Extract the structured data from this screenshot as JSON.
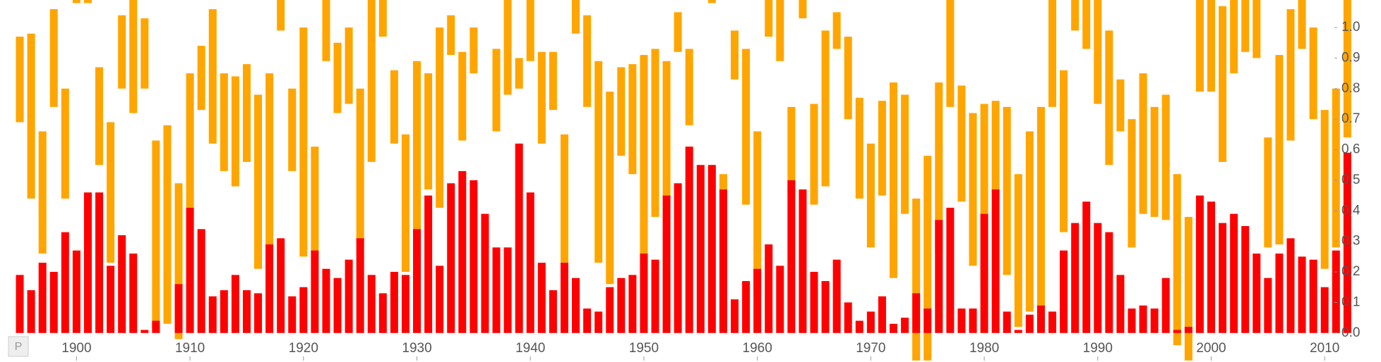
{
  "chart_data": {
    "type": "range-bar",
    "x": [
      1895,
      1896,
      1897,
      1898,
      1899,
      1900,
      1901,
      1902,
      1903,
      1904,
      1905,
      1906,
      1907,
      1908,
      1909,
      1910,
      1911,
      1912,
      1913,
      1914,
      1915,
      1916,
      1917,
      1918,
      1919,
      1920,
      1921,
      1922,
      1923,
      1924,
      1925,
      1926,
      1927,
      1928,
      1929,
      1930,
      1931,
      1932,
      1933,
      1934,
      1935,
      1936,
      1937,
      1938,
      1939,
      1940,
      1941,
      1942,
      1943,
      1944,
      1945,
      1946,
      1947,
      1948,
      1949,
      1950,
      1951,
      1952,
      1953,
      1954,
      1955,
      1956,
      1957,
      1958,
      1959,
      1960,
      1961,
      1962,
      1963,
      1964,
      1965,
      1966,
      1967,
      1968,
      1969,
      1970,
      1971,
      1972,
      1973,
      1974,
      1975,
      1976,
      1977,
      1978,
      1979,
      1980,
      1981,
      1982,
      1983,
      1984,
      1985,
      1986,
      1987,
      1988,
      1989,
      1990,
      1991,
      1992,
      1993,
      1994,
      1995,
      1996,
      1997,
      1998,
      1999,
      2000,
      2001,
      2002,
      2003,
      2004,
      2005,
      2006,
      2007,
      2008,
      2009,
      2010,
      2011,
      2012
    ],
    "series": [
      {
        "color": "#ffa500",
        "low": [
          0.69,
          0.44,
          0.26,
          0.74,
          0.44,
          1.08,
          1.08,
          0.55,
          0.23,
          0.8,
          0.72,
          0.8,
          0.01,
          0.03,
          -0.02,
          0.41,
          0.73,
          0.62,
          0.53,
          0.48,
          0.56,
          0.21,
          0.26,
          0.99,
          0.53,
          0.25,
          0.26,
          0.89,
          0.72,
          0.75,
          0.29,
          0.56,
          0.97,
          0.62,
          0.2,
          0.24,
          0.47,
          0.41,
          0.91,
          0.63,
          0.85,
          null,
          0.66,
          0.78,
          0.8,
          0.89,
          0.62,
          0.73,
          0.22,
          0.98,
          0.74,
          0.23,
          0.16,
          0.58,
          0.52,
          0.23,
          0.38,
          0.44,
          0.92,
          0.68,
          null,
          1.08,
          0.47,
          0.83,
          0.42,
          0.14,
          0.97,
          0.89,
          0.45,
          1.03,
          0.42,
          0.48,
          0.93,
          0.7,
          0.44,
          0.28,
          0.45,
          0.18,
          0.39,
          -0.09,
          -0.09,
          0.26,
          0.74,
          0.43,
          0.22,
          0.17,
          0.46,
          0.19,
          0.02,
          0.07,
          0.07,
          0.74,
          0.33,
          0.99,
          0.93,
          0.75,
          0.55,
          0.66,
          0.28,
          0.39,
          0.38,
          0.37,
          -0.04,
          -0.09,
          0.79,
          0.79,
          0.56,
          0.85,
          0.92,
          0.9,
          0.28,
          0.29,
          0.63,
          0.93,
          0.7,
          0.21,
          0.28,
          0.64
        ],
        "high": [
          0.97,
          0.98,
          0.66,
          1.06,
          0.8,
          1.09,
          1.09,
          0.87,
          0.69,
          1.04,
          1.09,
          1.03,
          0.63,
          0.68,
          0.49,
          0.85,
          0.94,
          1.06,
          0.85,
          0.84,
          0.88,
          0.78,
          0.85,
          1.09,
          0.8,
          1.0,
          0.61,
          1.09,
          0.95,
          1.0,
          0.8,
          1.09,
          1.09,
          0.86,
          0.65,
          0.89,
          0.85,
          1.0,
          1.04,
          0.92,
          1.0,
          null,
          0.93,
          1.09,
          0.9,
          1.09,
          0.92,
          0.92,
          0.65,
          1.09,
          1.04,
          0.89,
          0.79,
          0.87,
          0.88,
          0.91,
          0.93,
          0.89,
          1.05,
          0.93,
          null,
          1.09,
          0.52,
          0.99,
          0.93,
          0.66,
          1.09,
          1.09,
          0.74,
          1.09,
          0.75,
          0.99,
          1.05,
          0.97,
          0.77,
          0.62,
          0.76,
          0.82,
          0.78,
          0.44,
          0.58,
          0.82,
          1.09,
          0.81,
          0.72,
          0.75,
          0.76,
          0.74,
          0.52,
          0.66,
          0.74,
          1.09,
          0.86,
          1.09,
          1.09,
          1.09,
          0.99,
          0.83,
          0.7,
          0.85,
          0.74,
          0.78,
          0.52,
          0.38,
          1.09,
          1.09,
          1.07,
          1.09,
          1.09,
          1.09,
          0.64,
          0.91,
          1.06,
          1.09,
          1.0,
          0.73,
          0.8,
          1.09
        ]
      },
      {
        "color": "#ff0000",
        "values": [
          0.19,
          0.14,
          0.23,
          0.2,
          0.33,
          0.27,
          0.46,
          0.46,
          0.22,
          0.32,
          0.26,
          0.01,
          0.04,
          0,
          0.16,
          0.41,
          0.34,
          0.12,
          0.14,
          0.19,
          0.14,
          0.13,
          0.29,
          0.31,
          0.12,
          0.15,
          0.27,
          0.21,
          0.18,
          0.24,
          0.31,
          0.19,
          0.13,
          0.2,
          0.19,
          0.34,
          0.45,
          0.22,
          0.49,
          0.53,
          0.5,
          0.39,
          0.28,
          0.28,
          0.62,
          0.46,
          0.23,
          0.14,
          0.23,
          0.18,
          0.08,
          0.07,
          0.15,
          0.18,
          0.19,
          0.26,
          0.24,
          0.45,
          0.49,
          0.61,
          0.55,
          0.55,
          0.47,
          0.11,
          0.17,
          0.21,
          0.29,
          0.22,
          0.5,
          0.47,
          0.2,
          0.17,
          0.24,
          0.1,
          0.04,
          0.07,
          0.12,
          0.03,
          0.05,
          0.13,
          0.08,
          0.37,
          0.41,
          0.08,
          0.08,
          0.39,
          0.47,
          0.07,
          0.01,
          0.06,
          0.09,
          0.07,
          0.27,
          0.36,
          0.43,
          0.36,
          0.33,
          0.19,
          0.08,
          0.09,
          0.08,
          0.18,
          0.01,
          0.02,
          0.45,
          0.43,
          0.36,
          0.39,
          0.35,
          0.26,
          0.18,
          0.26,
          0.31,
          0.25,
          0.24,
          0.15,
          0.27,
          0.59
        ]
      }
    ],
    "xlim": [
      1894.5,
      2012.6
    ],
    "xticks": [
      1900,
      1910,
      1920,
      1930,
      1940,
      1950,
      1960,
      1970,
      1980,
      1990,
      2000,
      2010
    ],
    "ylim": [
      -0.095,
      1.09
    ],
    "yticks": [
      {
        "value": 0,
        "label": "0.0"
      },
      0.1,
      0.2,
      0.3,
      0.4,
      0.5,
      0.6,
      0.7,
      0.8,
      0.9,
      {
        "value": 1,
        "label": "1.0"
      }
    ],
    "icon_label": "P"
  }
}
